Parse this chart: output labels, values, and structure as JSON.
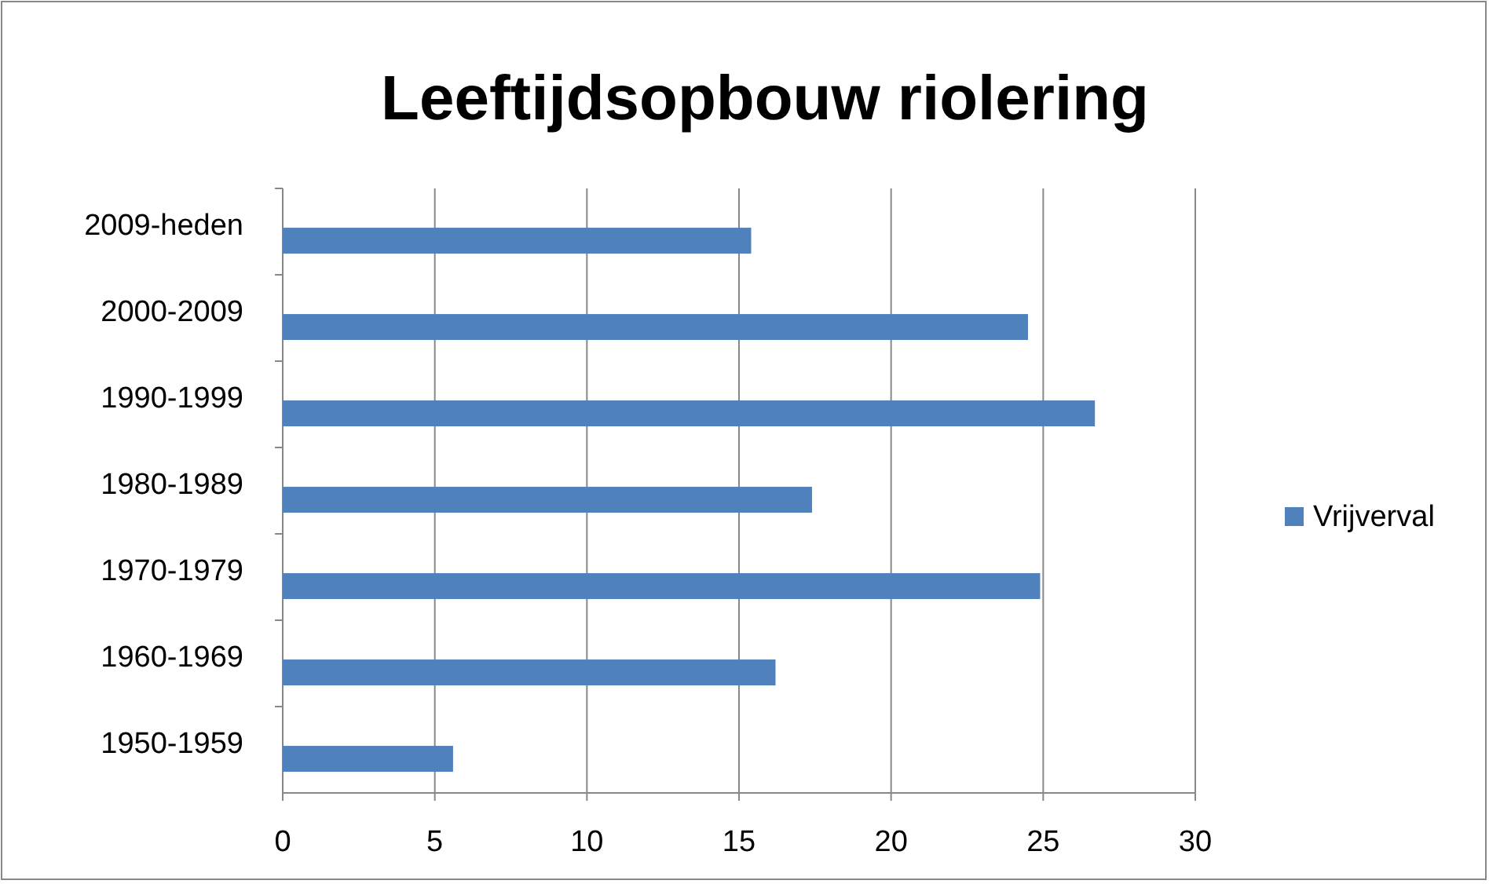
{
  "chart_data": {
    "type": "bar",
    "orientation": "horizontal",
    "title": "Leeftijdsopbouw riolering",
    "categories": [
      "2009-heden",
      "2000-2009",
      "1990-1999",
      "1980-1989",
      "1970-1979",
      "1960-1969",
      "1950-1959"
    ],
    "series": [
      {
        "name": "Vrijverval",
        "color": "#4f81bd",
        "values": [
          15.4,
          24.5,
          26.7,
          17.4,
          24.9,
          16.2,
          5.6
        ]
      }
    ],
    "xlim": [
      0,
      30
    ],
    "xticks": [
      0,
      5,
      10,
      15,
      20,
      25,
      30
    ],
    "grid": "x",
    "legend": "right"
  }
}
